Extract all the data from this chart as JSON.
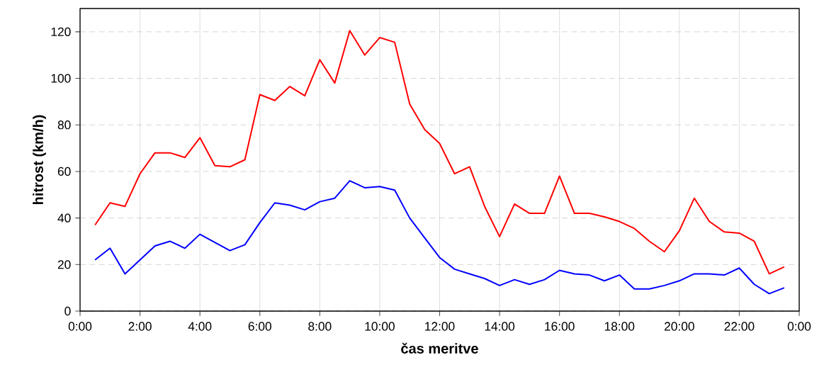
{
  "chart_data": {
    "type": "line",
    "xlabel": "čas meritve",
    "ylabel": "hitrost (km/h)",
    "x": [
      0.5,
      1,
      1.5,
      2,
      2.5,
      3,
      3.5,
      4,
      4.5,
      5,
      5.5,
      6,
      6.5,
      7,
      7.5,
      8,
      8.5,
      9,
      9.5,
      10,
      10.5,
      11,
      11.5,
      12,
      12.5,
      13,
      13.5,
      14,
      14.5,
      15,
      15.5,
      16,
      16.5,
      17,
      17.5,
      18,
      18.5,
      19,
      19.5,
      20,
      20.5,
      21,
      21.5,
      22,
      22.5,
      23,
      23.5
    ],
    "series": [
      {
        "color": "#ff0000",
        "values": [
          37,
          46.5,
          45,
          59,
          68,
          68,
          66,
          74.5,
          62.5,
          62,
          65,
          93,
          90.5,
          96.5,
          92.5,
          108,
          98,
          120.5,
          110,
          117.5,
          115.5,
          89,
          78,
          72,
          59,
          62,
          45,
          32,
          46,
          42,
          42,
          58,
          42,
          42,
          40.5,
          38.5,
          35.5,
          30,
          25.5,
          34.5,
          48.5,
          38.5,
          34,
          33.5,
          30,
          16,
          19
        ]
      },
      {
        "color": "#0000ff",
        "values": [
          22,
          27,
          16,
          22,
          28,
          30,
          27,
          33,
          29.5,
          26,
          28.5,
          38,
          46.5,
          45.5,
          43.5,
          47,
          48.5,
          56,
          53,
          53.5,
          52,
          40,
          31.5,
          23,
          18,
          16,
          14,
          11,
          13.5,
          11.5,
          13.5,
          17.5,
          16,
          15.5,
          13,
          15.5,
          9.5,
          9.5,
          11,
          13,
          16,
          16,
          15.5,
          18.5,
          11.5,
          7.5,
          10
        ]
      }
    ],
    "xlim": [
      0,
      24
    ],
    "ylim": [
      0,
      130
    ],
    "xticks": [
      {
        "value": 0,
        "label": "0:00"
      },
      {
        "value": 2,
        "label": "2:00"
      },
      {
        "value": 4,
        "label": "4:00"
      },
      {
        "value": 6,
        "label": "6:00"
      },
      {
        "value": 8,
        "label": "8:00"
      },
      {
        "value": 10,
        "label": "10:00"
      },
      {
        "value": 12,
        "label": "12:00"
      },
      {
        "value": 14,
        "label": "14:00"
      },
      {
        "value": 16,
        "label": "16:00"
      },
      {
        "value": 18,
        "label": "18:00"
      },
      {
        "value": 20,
        "label": "20:00"
      },
      {
        "value": 22,
        "label": "22:00"
      },
      {
        "value": 24,
        "label": "0:00"
      }
    ],
    "yticks": [
      0,
      20,
      40,
      60,
      80,
      100,
      120
    ],
    "grid": true,
    "marker": "none",
    "line_style": "solid"
  }
}
